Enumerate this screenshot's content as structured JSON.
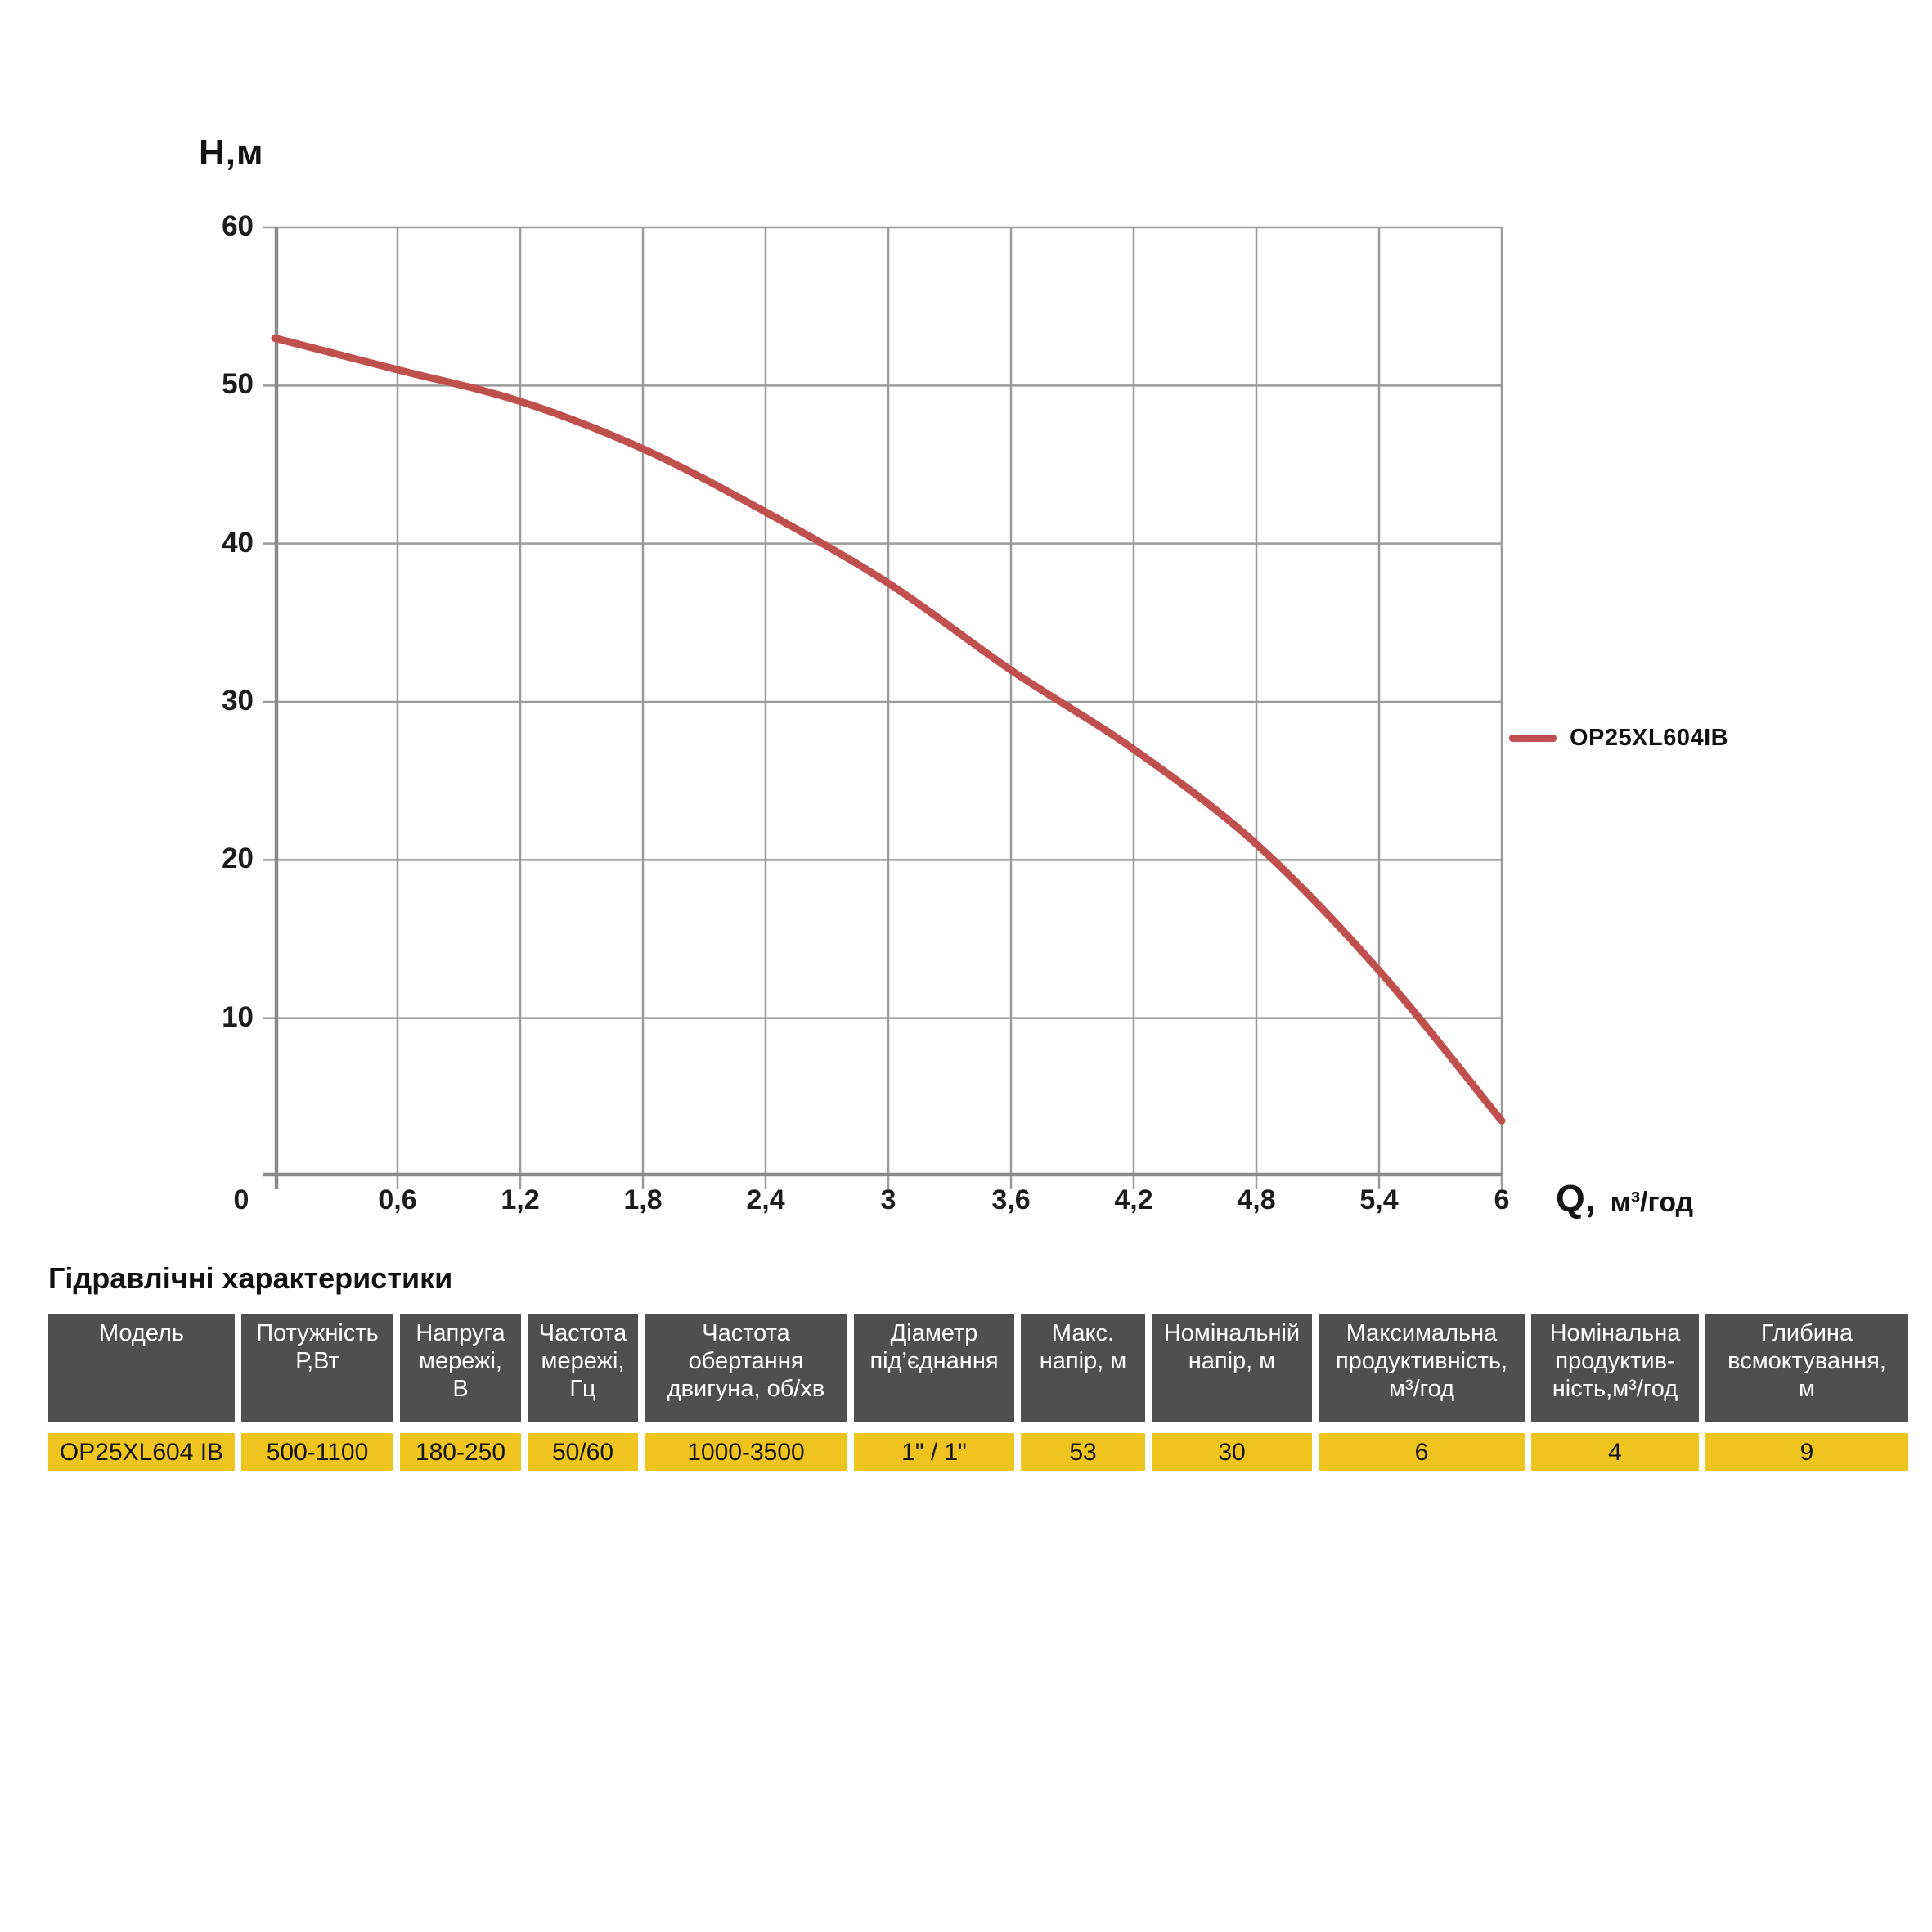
{
  "chart": {
    "y_axis_title": "H,м",
    "x_axis_title": "Q,",
    "x_axis_unit": "м³/год",
    "y_ticks": [
      "60",
      "50",
      "40",
      "30",
      "20",
      "10"
    ],
    "origin_tick": "0",
    "x_ticks": [
      "0,6",
      "1,2",
      "1,8",
      "2,4",
      "3",
      "3,6",
      "4,2",
      "4,8",
      "5,4",
      "6"
    ],
    "legend_label": "OP25XL604IB",
    "colors": {
      "curve": "#c0504d",
      "grid": "#9b9b9b",
      "axis": "#8a8a8a",
      "header_bg": "#4f4f4f",
      "row_bg": "#efc41e"
    }
  },
  "chart_data": {
    "type": "line",
    "title": "",
    "x": [
      0,
      0.6,
      1.2,
      1.8,
      2.4,
      3,
      3.6,
      4.2,
      4.8,
      5.4,
      6
    ],
    "series": [
      {
        "name": "OP25XL604IB",
        "values": [
          53,
          51,
          49,
          46,
          42,
          37.5,
          32,
          27,
          21,
          13,
          3.5
        ]
      }
    ],
    "xlabel": "Q, м³/год",
    "ylabel": "H,м",
    "xlim": [
      0,
      6
    ],
    "ylim": [
      0,
      60
    ],
    "x_tick_step": 0.6,
    "y_tick_step": 10,
    "grid": true,
    "legend_position": "right"
  },
  "table": {
    "title": "Гідравлічні характеристики",
    "columns": [
      "Модель",
      "Потужність\nР,Вт",
      "Напруга\nмережі,\nВ",
      "Частота\nмережі,\nГц",
      "Частота\nобертання\nдвигуна, об/хв",
      "Діаметр\nпід’єднання",
      "Макс.\nнапір, м",
      "Номінальній\nнапір, м",
      "Максимальна\nпродуктивність,\nм³/год",
      "Номінальна\nпродуктив-\nність,м³/год",
      "Глибина\nвсмоктування,\nм"
    ],
    "rows": [
      [
        "OP25XL604 IB",
        "500-1100",
        "180-250",
        "50/60",
        "1000-3500",
        "1\" / 1\"",
        "53",
        "30",
        "6",
        "4",
        "9"
      ]
    ]
  }
}
